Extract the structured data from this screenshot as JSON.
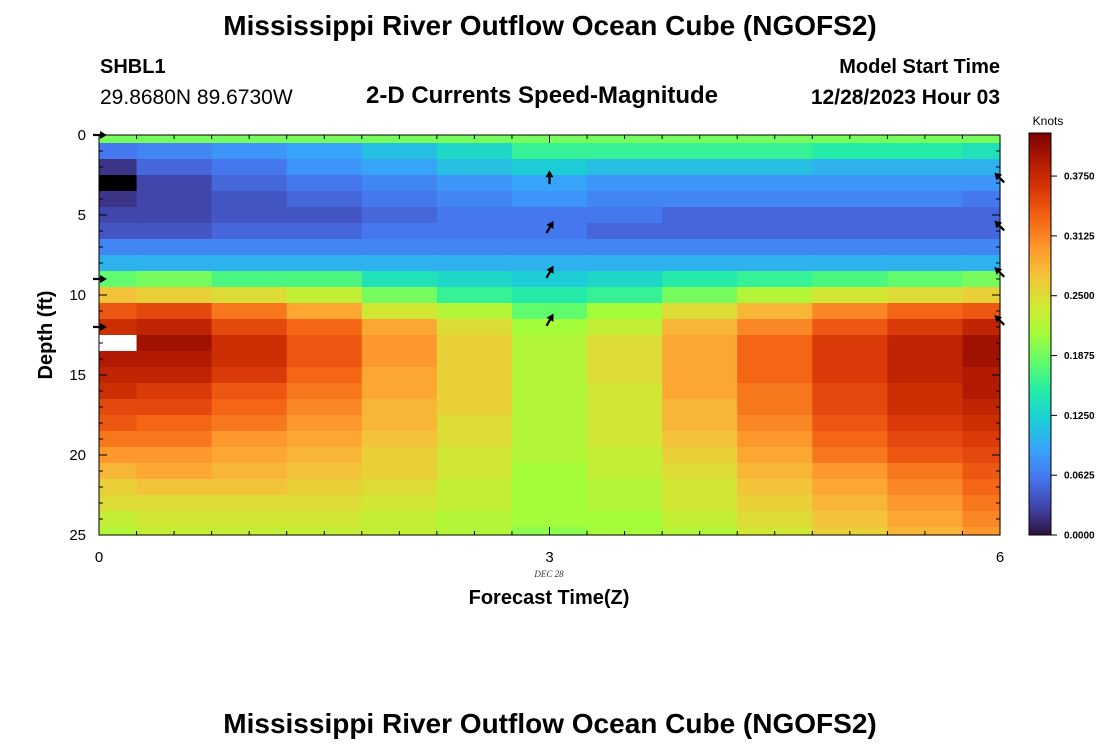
{
  "header": {
    "title": "Mississippi River Outflow Ocean Cube (NGOFS2)",
    "station_id": "SHBL1",
    "station_coords": "29.8680N  89.6730W",
    "subtitle": "2-D Currents Speed-Magnitude",
    "model_start_label": "Model Start Time",
    "model_start_value": "12/28/2023 Hour 03"
  },
  "footer": {
    "repeat_title": "Mississippi River Outflow Ocean Cube (NGOFS2)"
  },
  "chart_data": {
    "type": "heatmap",
    "xlabel": "Forecast Time(Z)",
    "ylabel": "Depth (ft)",
    "x_ticks": [
      "0",
      "3",
      "6"
    ],
    "x_tick_values": [
      0,
      3,
      6
    ],
    "x_sublabel": "DEC 28",
    "y_ticks": [
      "0",
      "5",
      "10",
      "15",
      "20",
      "25"
    ],
    "y_tick_values": [
      0,
      5,
      10,
      15,
      20,
      25
    ],
    "xlim": [
      0,
      6
    ],
    "ylim": [
      0,
      25
    ],
    "colorbar": {
      "label": "Knots",
      "ticks": [
        "0.0000",
        "0.0625",
        "0.1250",
        "0.1875",
        "0.2500",
        "0.3125",
        "0.3750"
      ],
      "tick_values": [
        0,
        0.0625,
        0.125,
        0.1875,
        0.25,
        0.3125,
        0.375
      ],
      "range": [
        0,
        0.42
      ]
    },
    "time_steps": [
      0,
      0.25,
      0.75,
      1.25,
      1.75,
      2.25,
      2.75,
      3.25,
      3.75,
      4.25,
      4.75,
      5.25,
      5.75,
      6
    ],
    "depth_steps": [
      0,
      0.5,
      1.5,
      2.5,
      3.5,
      4.5,
      5.5,
      6.5,
      7.5,
      8.5,
      9.5,
      10.5,
      11.5,
      12.5,
      13.5,
      14.5,
      15.5,
      16.5,
      17.5,
      18.5,
      19.5,
      20.5,
      21.5,
      22.5,
      23.5,
      24.5,
      25
    ],
    "speed_knots": [
      [
        0.19,
        0.19,
        0.19,
        0.19,
        0.19,
        0.19,
        0.19,
        0.19,
        0.19,
        0.19,
        0.19,
        0.19,
        0.19,
        0.19
      ],
      [
        0.06,
        0.07,
        0.08,
        0.09,
        0.11,
        0.13,
        0.16,
        0.16,
        0.16,
        0.16,
        0.15,
        0.15,
        0.14,
        0.14
      ],
      [
        0.02,
        0.05,
        0.06,
        0.08,
        0.09,
        0.11,
        0.12,
        0.11,
        0.11,
        0.11,
        0.1,
        0.1,
        0.1,
        0.09
      ],
      [
        0.0,
        0.03,
        0.05,
        0.06,
        0.07,
        0.08,
        0.09,
        0.08,
        0.08,
        0.08,
        0.08,
        0.08,
        0.08,
        0.07
      ],
      [
        0.02,
        0.03,
        0.04,
        0.05,
        0.06,
        0.07,
        0.08,
        0.07,
        0.07,
        0.07,
        0.07,
        0.07,
        0.06,
        0.06
      ],
      [
        0.03,
        0.03,
        0.04,
        0.04,
        0.05,
        0.06,
        0.06,
        0.06,
        0.05,
        0.05,
        0.05,
        0.05,
        0.05,
        0.05
      ],
      [
        0.04,
        0.04,
        0.05,
        0.05,
        0.06,
        0.06,
        0.06,
        0.05,
        0.05,
        0.05,
        0.05,
        0.05,
        0.05,
        0.05
      ],
      [
        0.07,
        0.07,
        0.07,
        0.07,
        0.07,
        0.07,
        0.07,
        0.07,
        0.07,
        0.07,
        0.07,
        0.07,
        0.07,
        0.07
      ],
      [
        0.1,
        0.1,
        0.1,
        0.1,
        0.1,
        0.1,
        0.1,
        0.1,
        0.1,
        0.1,
        0.1,
        0.1,
        0.1,
        0.1
      ],
      [
        0.18,
        0.19,
        0.17,
        0.17,
        0.14,
        0.13,
        0.12,
        0.13,
        0.15,
        0.16,
        0.17,
        0.18,
        0.19,
        0.2
      ],
      [
        0.27,
        0.26,
        0.25,
        0.23,
        0.19,
        0.16,
        0.15,
        0.16,
        0.19,
        0.22,
        0.24,
        0.25,
        0.26,
        0.26
      ],
      [
        0.34,
        0.35,
        0.32,
        0.29,
        0.24,
        0.22,
        0.18,
        0.21,
        0.25,
        0.28,
        0.31,
        0.33,
        0.34,
        0.35
      ],
      [
        0.37,
        0.38,
        0.35,
        0.33,
        0.29,
        0.25,
        0.21,
        0.23,
        0.28,
        0.31,
        0.34,
        0.36,
        0.38,
        0.39
      ],
      [
        0.41,
        0.4,
        0.37,
        0.34,
        0.3,
        0.26,
        0.22,
        0.25,
        0.29,
        0.33,
        0.36,
        0.38,
        0.4,
        0.41
      ],
      [
        0.39,
        0.39,
        0.37,
        0.34,
        0.3,
        0.26,
        0.22,
        0.25,
        0.29,
        0.33,
        0.36,
        0.38,
        0.4,
        0.42
      ],
      [
        0.38,
        0.38,
        0.36,
        0.33,
        0.29,
        0.26,
        0.22,
        0.25,
        0.29,
        0.33,
        0.36,
        0.38,
        0.39,
        0.41
      ],
      [
        0.37,
        0.36,
        0.34,
        0.32,
        0.29,
        0.26,
        0.22,
        0.24,
        0.29,
        0.32,
        0.35,
        0.37,
        0.39,
        0.41
      ],
      [
        0.35,
        0.35,
        0.33,
        0.31,
        0.28,
        0.26,
        0.22,
        0.24,
        0.28,
        0.32,
        0.35,
        0.37,
        0.38,
        0.4
      ],
      [
        0.34,
        0.33,
        0.32,
        0.3,
        0.28,
        0.25,
        0.22,
        0.24,
        0.28,
        0.31,
        0.34,
        0.36,
        0.37,
        0.39
      ],
      [
        0.32,
        0.32,
        0.3,
        0.29,
        0.27,
        0.25,
        0.22,
        0.24,
        0.27,
        0.3,
        0.33,
        0.35,
        0.36,
        0.38
      ],
      [
        0.3,
        0.3,
        0.29,
        0.28,
        0.26,
        0.24,
        0.22,
        0.23,
        0.26,
        0.29,
        0.32,
        0.34,
        0.35,
        0.37
      ],
      [
        0.28,
        0.29,
        0.28,
        0.27,
        0.26,
        0.24,
        0.21,
        0.23,
        0.25,
        0.28,
        0.3,
        0.32,
        0.34,
        0.36
      ],
      [
        0.26,
        0.27,
        0.27,
        0.26,
        0.25,
        0.23,
        0.21,
        0.22,
        0.24,
        0.27,
        0.29,
        0.31,
        0.33,
        0.35
      ],
      [
        0.25,
        0.25,
        0.25,
        0.25,
        0.24,
        0.23,
        0.21,
        0.22,
        0.24,
        0.26,
        0.28,
        0.3,
        0.32,
        0.34
      ],
      [
        0.23,
        0.24,
        0.24,
        0.24,
        0.23,
        0.22,
        0.21,
        0.21,
        0.23,
        0.25,
        0.27,
        0.29,
        0.31,
        0.33
      ],
      [
        0.22,
        0.23,
        0.23,
        0.23,
        0.23,
        0.22,
        0.2,
        0.21,
        0.22,
        0.24,
        0.26,
        0.28,
        0.3,
        0.32
      ]
    ],
    "masked_cells": [
      {
        "depth": [
          2.5,
          3.5
        ],
        "time": [
          0,
          0.25
        ],
        "fill": "#000000"
      },
      {
        "depth": [
          12.5,
          13.5
        ],
        "time": [
          0,
          0.25
        ],
        "fill": "#ffffff"
      }
    ],
    "current_vectors": [
      {
        "time": 0,
        "depth": 0,
        "dir": "right"
      },
      {
        "time": 0,
        "depth": 9,
        "dir": "right"
      },
      {
        "time": 0,
        "depth": 12,
        "dir": "right"
      },
      {
        "time": 3,
        "depth": 2.7,
        "dir": "up"
      },
      {
        "time": 3,
        "depth": 5.8,
        "dir": "up-right"
      },
      {
        "time": 3,
        "depth": 8.6,
        "dir": "up-right"
      },
      {
        "time": 3,
        "depth": 11.6,
        "dir": "up-right"
      },
      {
        "time": 6,
        "depth": 2.7,
        "dir": "up-left"
      },
      {
        "time": 6,
        "depth": 5.7,
        "dir": "up-left"
      },
      {
        "time": 6,
        "depth": 8.6,
        "dir": "up-left"
      },
      {
        "time": 6,
        "depth": 11.6,
        "dir": "up-left"
      }
    ]
  }
}
